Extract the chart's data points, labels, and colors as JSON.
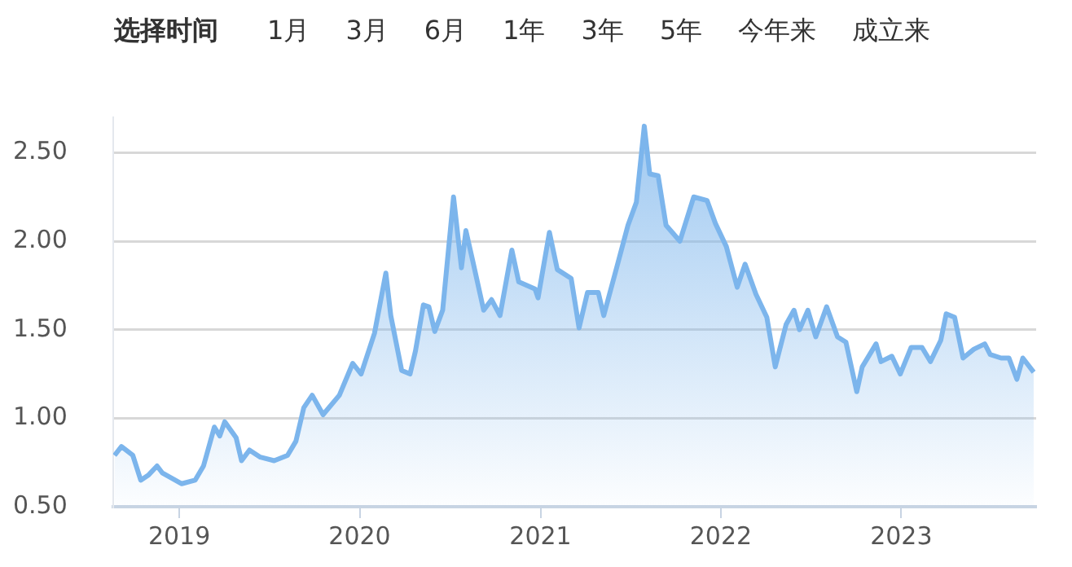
{
  "chart_data": {
    "type": "area",
    "annotations": [
      "选择时间",
      "1月",
      "3月",
      "6月",
      "1年",
      "3年",
      "5年",
      "今年来",
      "成立来"
    ],
    "x": [
      "2018-08-23",
      "2018-09-06",
      "2018-09-29",
      "2018-10-15",
      "2018-10-31",
      "2018-11-17",
      "2018-11-28",
      "2019-01-06",
      "2019-02-02",
      "2019-02-19",
      "2019-03-13",
      "2019-03-24",
      "2019-04-03",
      "2019-04-26",
      "2019-05-07",
      "2019-05-23",
      "2019-06-14",
      "2019-07-12",
      "2019-08-08",
      "2019-08-25",
      "2019-09-10",
      "2019-09-27",
      "2019-10-19",
      "2019-11-21",
      "2019-12-18",
      "2020-01-04",
      "2020-01-31",
      "2020-02-23",
      "2020-03-04",
      "2020-03-26",
      "2020-04-12",
      "2020-04-23",
      "2020-05-09",
      "2020-05-20",
      "2020-06-01",
      "2020-06-17",
      "2020-07-09",
      "2020-07-25",
      "2020-08-03",
      "2020-08-16",
      "2020-09-08",
      "2020-09-24",
      "2020-10-11",
      "2020-11-04",
      "2020-11-18",
      "2020-12-21",
      "2020-12-27",
      "2021-01-19",
      "2021-02-04",
      "2021-03-04",
      "2021-03-20",
      "2021-04-06",
      "2021-04-28",
      "2021-05-09",
      "2021-06-05",
      "2021-06-27",
      "2021-07-14",
      "2021-07-30",
      "2021-08-10",
      "2021-08-27",
      "2021-09-12",
      "2021-10-10",
      "2021-11-07",
      "2021-12-04",
      "2021-12-21",
      "2022-01-12",
      "2022-02-03",
      "2022-02-19",
      "2022-03-13",
      "2022-04-04",
      "2022-04-21",
      "2022-05-13",
      "2022-05-29",
      "2022-06-09",
      "2022-06-26",
      "2022-07-12",
      "2022-08-03",
      "2022-08-25",
      "2022-09-11",
      "2022-10-03",
      "2022-10-14",
      "2022-11-11",
      "2022-11-21",
      "2022-12-13",
      "2022-12-30",
      "2023-01-21",
      "2023-02-12",
      "2023-03-01",
      "2023-03-22",
      "2023-04-02",
      "2023-04-19",
      "2023-05-06",
      "2023-05-28",
      "2023-06-19",
      "2023-06-30",
      "2023-07-22",
      "2023-08-07",
      "2023-08-23",
      "2023-09-04",
      "2023-09-26"
    ],
    "series": [
      {
        "color": "#7cb5ec",
        "values": [
          0.79,
          0.84,
          0.79,
          0.65,
          0.68,
          0.73,
          0.69,
          0.63,
          0.65,
          0.73,
          0.95,
          0.9,
          0.98,
          0.89,
          0.76,
          0.82,
          0.78,
          0.76,
          0.79,
          0.87,
          1.06,
          1.13,
          1.02,
          1.13,
          1.31,
          1.25,
          1.48,
          1.82,
          1.58,
          1.27,
          1.25,
          1.38,
          1.64,
          1.63,
          1.49,
          1.61,
          2.25,
          1.85,
          2.06,
          1.9,
          1.61,
          1.67,
          1.58,
          1.95,
          1.77,
          1.73,
          1.68,
          2.05,
          1.84,
          1.79,
          1.51,
          1.71,
          1.71,
          1.58,
          1.86,
          2.09,
          2.22,
          2.65,
          2.38,
          2.37,
          2.09,
          2.0,
          2.25,
          2.23,
          2.1,
          1.97,
          1.74,
          1.87,
          1.7,
          1.57,
          1.29,
          1.53,
          1.61,
          1.5,
          1.61,
          1.46,
          1.63,
          1.46,
          1.43,
          1.15,
          1.29,
          1.42,
          1.32,
          1.35,
          1.25,
          1.4,
          1.4,
          1.32,
          1.44,
          1.59,
          1.57,
          1.34,
          1.39,
          1.42,
          1.36,
          1.34,
          1.34,
          1.22,
          1.34,
          1.26
        ]
      }
    ],
    "xlim": [
      "2018-08-20",
      "2023-10-01"
    ],
    "xticks": [
      {
        "value": "2019-01-01",
        "label": "2019"
      },
      {
        "value": "2020-01-01",
        "label": "2020"
      },
      {
        "value": "2021-01-01",
        "label": "2021"
      },
      {
        "value": "2022-01-01",
        "label": "2022"
      },
      {
        "value": "2023-01-01",
        "label": "2023"
      }
    ],
    "ylim": [
      0.5,
      2.7
    ],
    "yticks": [
      {
        "value": 0.5,
        "label": "0.50"
      },
      {
        "value": 1,
        "label": "1.00"
      },
      {
        "value": 1.5,
        "label": "1.50"
      },
      {
        "value": 2,
        "label": "2.00"
      },
      {
        "value": 2.5,
        "label": "2.50"
      }
    ],
    "grid": "y",
    "legend": false
  }
}
